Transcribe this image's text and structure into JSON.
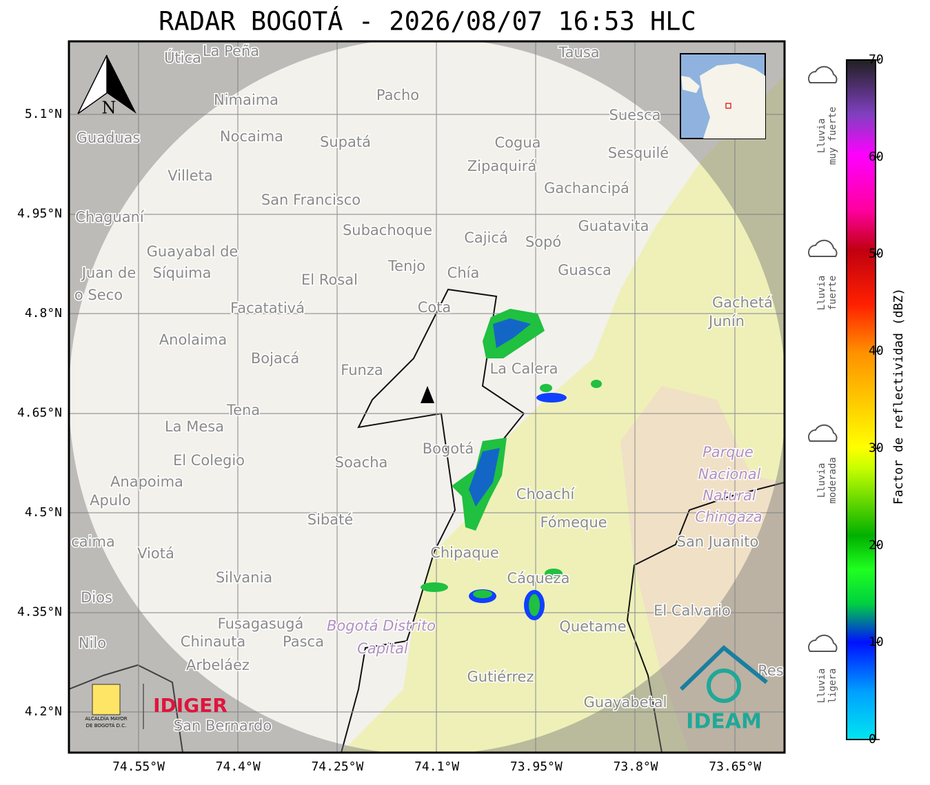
{
  "map": {
    "title": "RADAR BOGOTÁ - 2026/08/07 16:53 HLC",
    "north": "N",
    "lat_ticks": [
      "5.1°N",
      "4.95°N",
      "4.8°N",
      "4.65°N",
      "4.5°N",
      "4.35°N",
      "4.2°N"
    ],
    "lon_ticks": [
      "74.55°W",
      "74.4°W",
      "74.25°W",
      "74.1°W",
      "73.95°W",
      "73.8°W",
      "73.65°W"
    ],
    "places": [
      "Útica",
      "La Peña",
      "Tausa",
      "Pacho",
      "Nimaima",
      "Guaduas",
      "Nocaima",
      "Supatá",
      "Cogua",
      "Suesca",
      "Sesquilé",
      "Villeta",
      "Zipaquirá",
      "Gachancipá",
      "San Francisco",
      "Chaguaní",
      "Guatavita",
      "Subachoque",
      "Cajicá",
      "Sopó",
      "Guayabal de",
      "Síquima",
      "Tenjo",
      "Chía",
      "Guasca",
      "Juan de",
      "o Seco",
      "El Rosal",
      "Facatativá",
      "Cota",
      "Gachetá",
      "Junín",
      "Anolaima",
      "Bojacá",
      "Funza",
      "La Calera",
      "Tena",
      "La Mesa",
      "El Colegio",
      "Soacha",
      "Bogotá",
      "Parque",
      "Nacional",
      "Natural",
      "Chingaza",
      "Anapoima",
      "Apulo",
      "Choachí",
      "Sibaté",
      "Fómeque",
      "San Juanito",
      "caima",
      "Viotá",
      "Chipaque",
      "Silvania",
      "Cáqueza",
      "Dios",
      "El Calvario",
      "Fusagasugá",
      "Quetame",
      "Bogotá Distrito",
      "Capital",
      "Nilo",
      "Chinauta",
      "Pasca",
      "Arbeláez",
      "Res",
      "Gutiérrez",
      "Guayabetal",
      "San Bernardo"
    ],
    "colorbar": {
      "label": "Factor de reflectividad (dBZ)",
      "ticks": [
        0,
        10,
        20,
        30,
        40,
        50,
        60,
        70
      ],
      "categories": [
        [
          "Lluvia",
          "muy fuerte"
        ],
        [
          "Lluvia",
          "fuerte"
        ],
        [
          "Lluvia",
          "moderada"
        ],
        [
          "Lluvia",
          "ligera"
        ]
      ]
    },
    "logos": {
      "alcaldia": [
        "ALCALDÍA MAYOR",
        "DE BOGOTÁ D.C."
      ],
      "idiger": "IDIGER",
      "ideam": "IDEAM"
    }
  }
}
